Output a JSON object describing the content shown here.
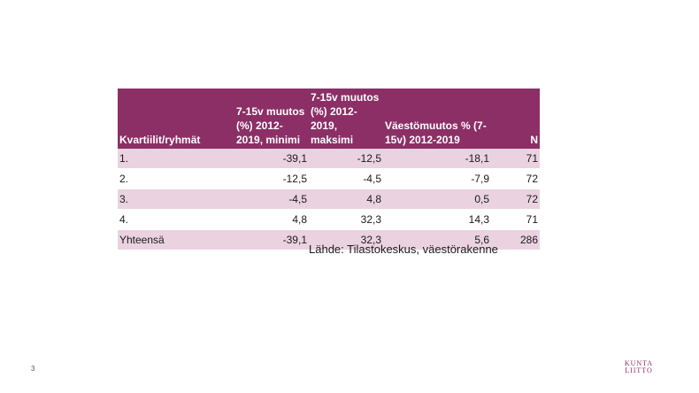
{
  "table": {
    "headers": [
      "Kvartiilit/ryhmät",
      "7-15v muutos (%) 2012-2019, minimi",
      "7-15v muutos (%) 2012-2019, maksimi",
      "Väestömuutos % (7-15v) 2012-2019",
      "N"
    ],
    "rows": [
      [
        "1.",
        "-39,1",
        "-12,5",
        "-18,1",
        "71"
      ],
      [
        "2.",
        "-12,5",
        "-4,5",
        "-7,9",
        "72"
      ],
      [
        "3.",
        "-4,5",
        "4,8",
        "0,5",
        "72"
      ],
      [
        "4.",
        "4,8",
        "32,3",
        "14,3",
        "71"
      ],
      [
        "Yhteensä",
        "-39,1",
        "32,3",
        "5,6",
        "286"
      ]
    ]
  },
  "source_text": "Lähde: Tilastokeskus, väestörakenne",
  "page_number": "3",
  "logo": {
    "line1": "KUNTA",
    "line2": "LIITTO"
  },
  "colors": {
    "header": "#8c2f66",
    "band": "#ead2e1"
  }
}
